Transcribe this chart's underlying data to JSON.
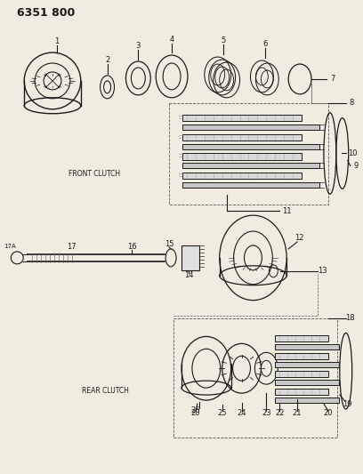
{
  "title": "6351 800",
  "background_color": "#f0ede0",
  "line_color": "#1a1a1a",
  "text_color": "#1a1a1a",
  "labels": {
    "front_clutch": "FRONT CLUTCH",
    "rear_clutch": "REAR CLUTCH"
  }
}
